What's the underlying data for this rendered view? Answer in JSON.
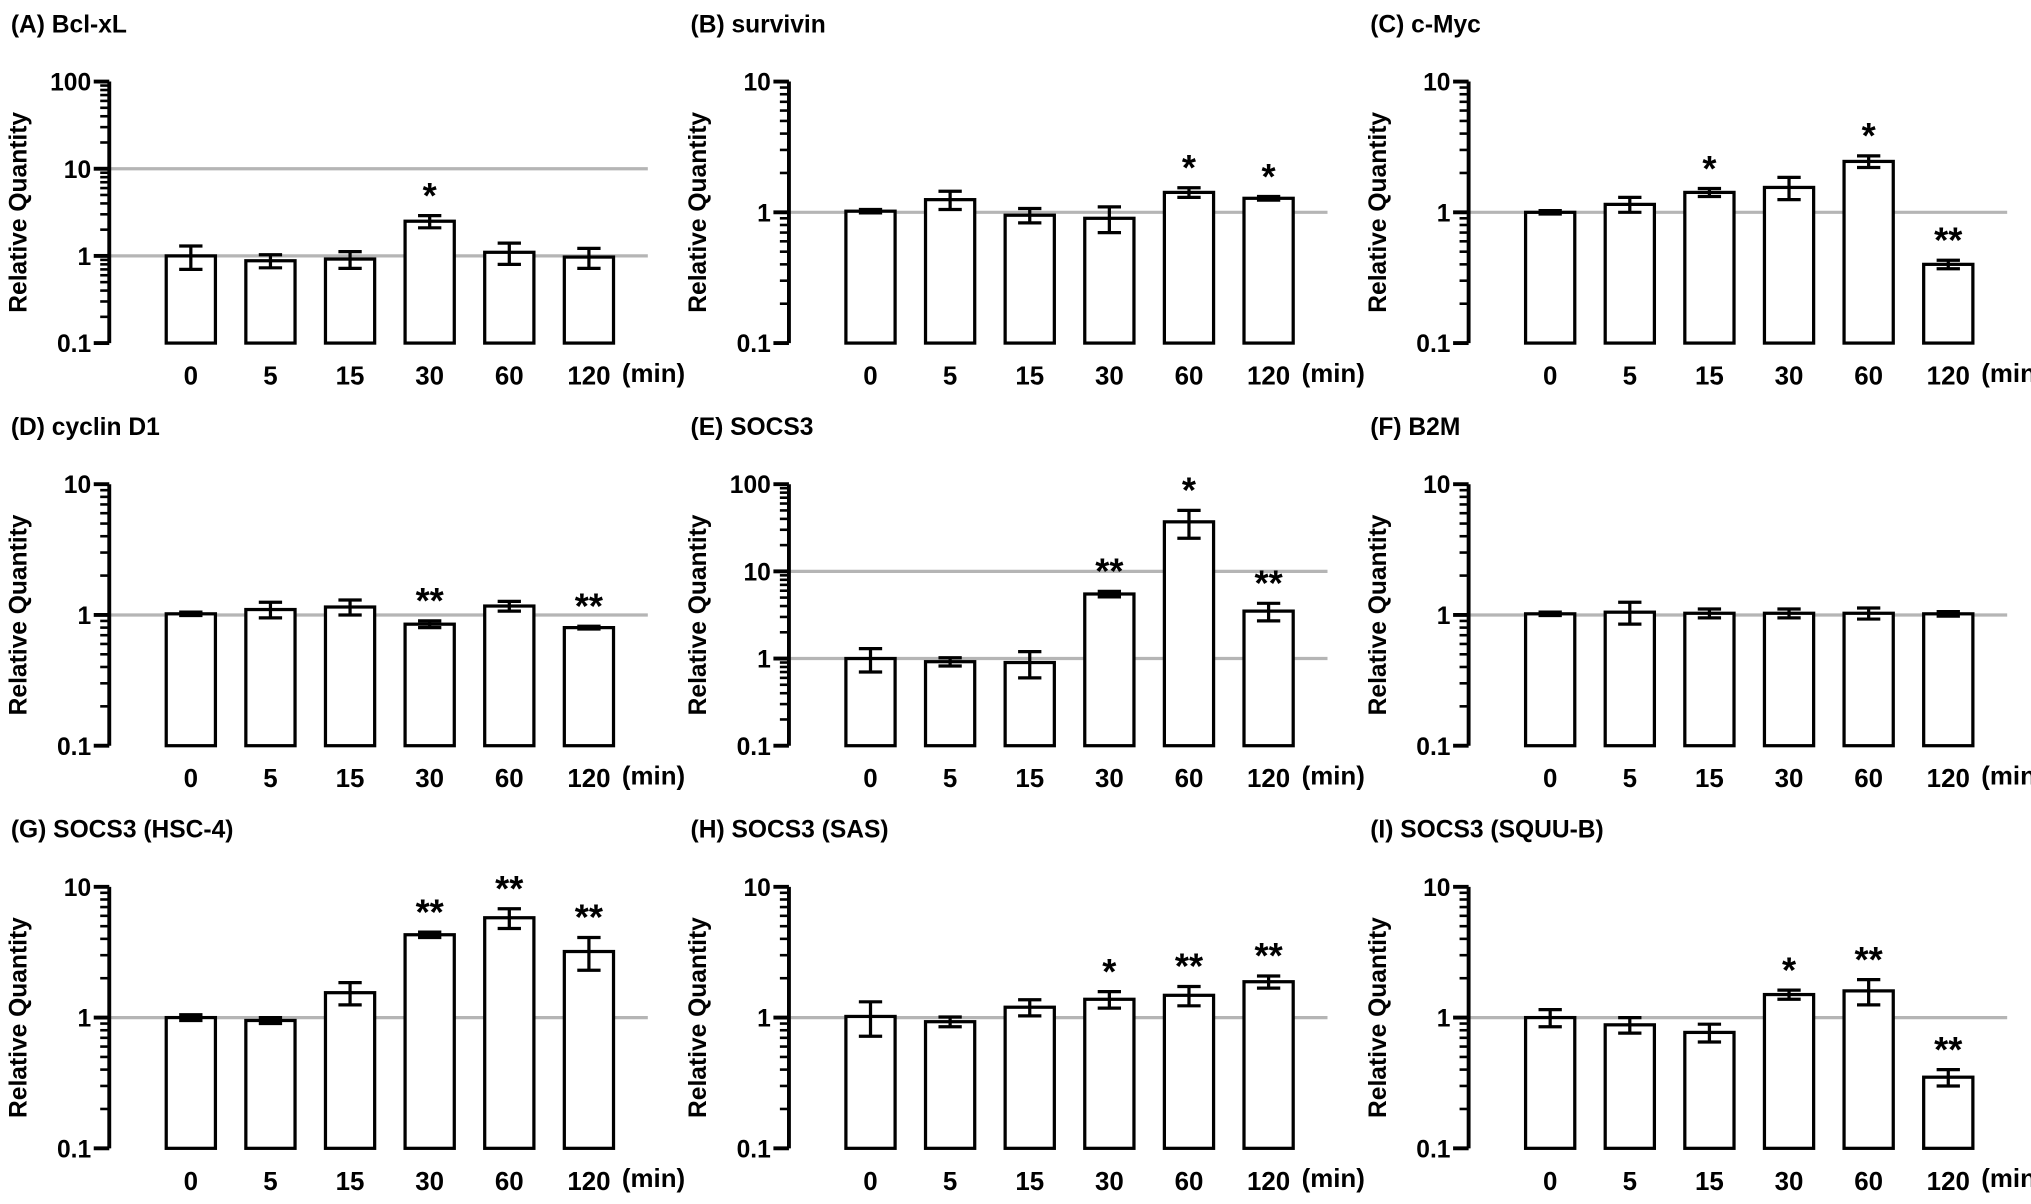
{
  "chart_data": [
    {
      "id": "A",
      "type": "bar",
      "title": "(A) Bcl-xL",
      "ylabel": "Relative Quantity",
      "yscale": "log",
      "ylim": [
        0.1,
        100
      ],
      "yticks": [
        "0.1",
        "1",
        "10",
        "100"
      ],
      "categories": [
        "0",
        "5",
        "15",
        "30",
        "60",
        "120"
      ],
      "xunit": "(min)",
      "values": [
        1.0,
        0.88,
        0.92,
        2.5,
        1.1,
        0.97
      ],
      "errors": [
        0.3,
        0.15,
        0.2,
        0.4,
        0.3,
        0.25
      ],
      "significance": [
        "",
        "",
        "",
        "*",
        "",
        ""
      ],
      "gridlines": [
        1,
        10
      ]
    },
    {
      "id": "B",
      "type": "bar",
      "title": "(B) survivin",
      "ylabel": "Relative Quantity",
      "yscale": "log",
      "ylim": [
        0.1,
        10
      ],
      "yticks": [
        "0.1",
        "1",
        "10"
      ],
      "categories": [
        "0",
        "5",
        "15",
        "30",
        "60",
        "120"
      ],
      "xunit": "(min)",
      "values": [
        1.02,
        1.25,
        0.95,
        0.9,
        1.42,
        1.28
      ],
      "errors": [
        0.03,
        0.2,
        0.12,
        0.2,
        0.12,
        0.04
      ],
      "significance": [
        "",
        "",
        "",
        "",
        "*",
        "*"
      ],
      "gridlines": [
        1
      ]
    },
    {
      "id": "C",
      "type": "bar",
      "title": "(C) c-Myc",
      "ylabel": "Relative Quantity",
      "yscale": "log",
      "ylim": [
        0.1,
        10
      ],
      "yticks": [
        "0.1",
        "1",
        "10"
      ],
      "categories": [
        "0",
        "5",
        "15",
        "30",
        "60",
        "120"
      ],
      "xunit": "(min)",
      "values": [
        1.0,
        1.15,
        1.42,
        1.55,
        2.45,
        0.4
      ],
      "errors": [
        0.03,
        0.15,
        0.1,
        0.3,
        0.25,
        0.03
      ],
      "significance": [
        "",
        "",
        "*",
        "",
        "*",
        "**"
      ],
      "gridlines": [
        1
      ]
    },
    {
      "id": "D",
      "type": "bar",
      "title": "(D) cyclin D1",
      "ylabel": "Relative Quantity",
      "yscale": "log",
      "ylim": [
        0.1,
        10
      ],
      "yticks": [
        "0.1",
        "1",
        "10"
      ],
      "categories": [
        "0",
        "5",
        "15",
        "30",
        "60",
        "120"
      ],
      "xunit": "(min)",
      "values": [
        1.02,
        1.1,
        1.15,
        0.85,
        1.17,
        0.8
      ],
      "errors": [
        0.03,
        0.15,
        0.15,
        0.05,
        0.1,
        0.02
      ],
      "significance": [
        "",
        "",
        "",
        "**",
        "",
        "**"
      ],
      "gridlines": [
        1
      ]
    },
    {
      "id": "E",
      "type": "bar",
      "title": "(E) SOCS3",
      "ylabel": "Relative Quantity",
      "yscale": "log",
      "ylim": [
        0.1,
        100
      ],
      "yticks": [
        "0.1",
        "1",
        "10",
        "100"
      ],
      "categories": [
        "0",
        "5",
        "15",
        "30",
        "60",
        "120"
      ],
      "xunit": "(min)",
      "values": [
        1.0,
        0.92,
        0.9,
        5.5,
        37,
        3.5
      ],
      "errors": [
        0.3,
        0.1,
        0.3,
        0.4,
        13,
        0.8
      ],
      "significance": [
        "",
        "",
        "",
        "**",
        "*",
        "**"
      ],
      "gridlines": [
        1,
        10
      ]
    },
    {
      "id": "F",
      "type": "bar",
      "title": "(F) B2M",
      "ylabel": "Relative Quantity",
      "yscale": "log",
      "ylim": [
        0.1,
        10
      ],
      "yticks": [
        "0.1",
        "1",
        "10"
      ],
      "categories": [
        "0",
        "5",
        "15",
        "30",
        "60",
        "120"
      ],
      "xunit": "(min)",
      "values": [
        1.02,
        1.05,
        1.03,
        1.03,
        1.03,
        1.02
      ],
      "errors": [
        0.03,
        0.2,
        0.08,
        0.08,
        0.1,
        0.04
      ],
      "significance": [
        "",
        "",
        "",
        "",
        "",
        ""
      ],
      "gridlines": [
        1
      ]
    },
    {
      "id": "G",
      "type": "bar",
      "title": "(G) SOCS3 (HSC-4)",
      "ylabel": "Relative Quantity",
      "yscale": "log",
      "ylim": [
        0.1,
        10
      ],
      "yticks": [
        "0.1",
        "1",
        "10"
      ],
      "categories": [
        "0",
        "5",
        "15",
        "30",
        "60",
        "120"
      ],
      "xunit": "(min)",
      "values": [
        1.0,
        0.95,
        1.55,
        4.3,
        5.8,
        3.2
      ],
      "errors": [
        0.05,
        0.05,
        0.3,
        0.2,
        1.0,
        0.9
      ],
      "significance": [
        "",
        "",
        "",
        "**",
        "**",
        "**"
      ],
      "gridlines": [
        1
      ]
    },
    {
      "id": "H",
      "type": "bar",
      "title": "(H) SOCS3 (SAS)",
      "ylabel": "Relative Quantity",
      "yscale": "log",
      "ylim": [
        0.1,
        10
      ],
      "yticks": [
        "0.1",
        "1",
        "10"
      ],
      "categories": [
        "0",
        "5",
        "15",
        "30",
        "60",
        "120"
      ],
      "xunit": "(min)",
      "values": [
        1.02,
        0.93,
        1.2,
        1.38,
        1.48,
        1.88
      ],
      "errors": [
        0.3,
        0.08,
        0.17,
        0.2,
        0.25,
        0.2
      ],
      "significance": [
        "",
        "",
        "",
        "*",
        "**",
        "**"
      ],
      "gridlines": [
        1
      ]
    },
    {
      "id": "I",
      "type": "bar",
      "title": "(I) SOCS3 (SQUU-B)",
      "ylabel": "Relative Quantity",
      "yscale": "log",
      "ylim": [
        0.1,
        10
      ],
      "yticks": [
        "0.1",
        "1",
        "10"
      ],
      "categories": [
        "0",
        "5",
        "15",
        "30",
        "60",
        "120"
      ],
      "xunit": "(min)",
      "values": [
        1.0,
        0.88,
        0.77,
        1.5,
        1.6,
        0.35
      ],
      "errors": [
        0.15,
        0.12,
        0.12,
        0.12,
        0.35,
        0.05
      ],
      "significance": [
        "",
        "",
        "",
        "*",
        "**",
        "**"
      ],
      "gridlines": [
        1
      ]
    }
  ]
}
